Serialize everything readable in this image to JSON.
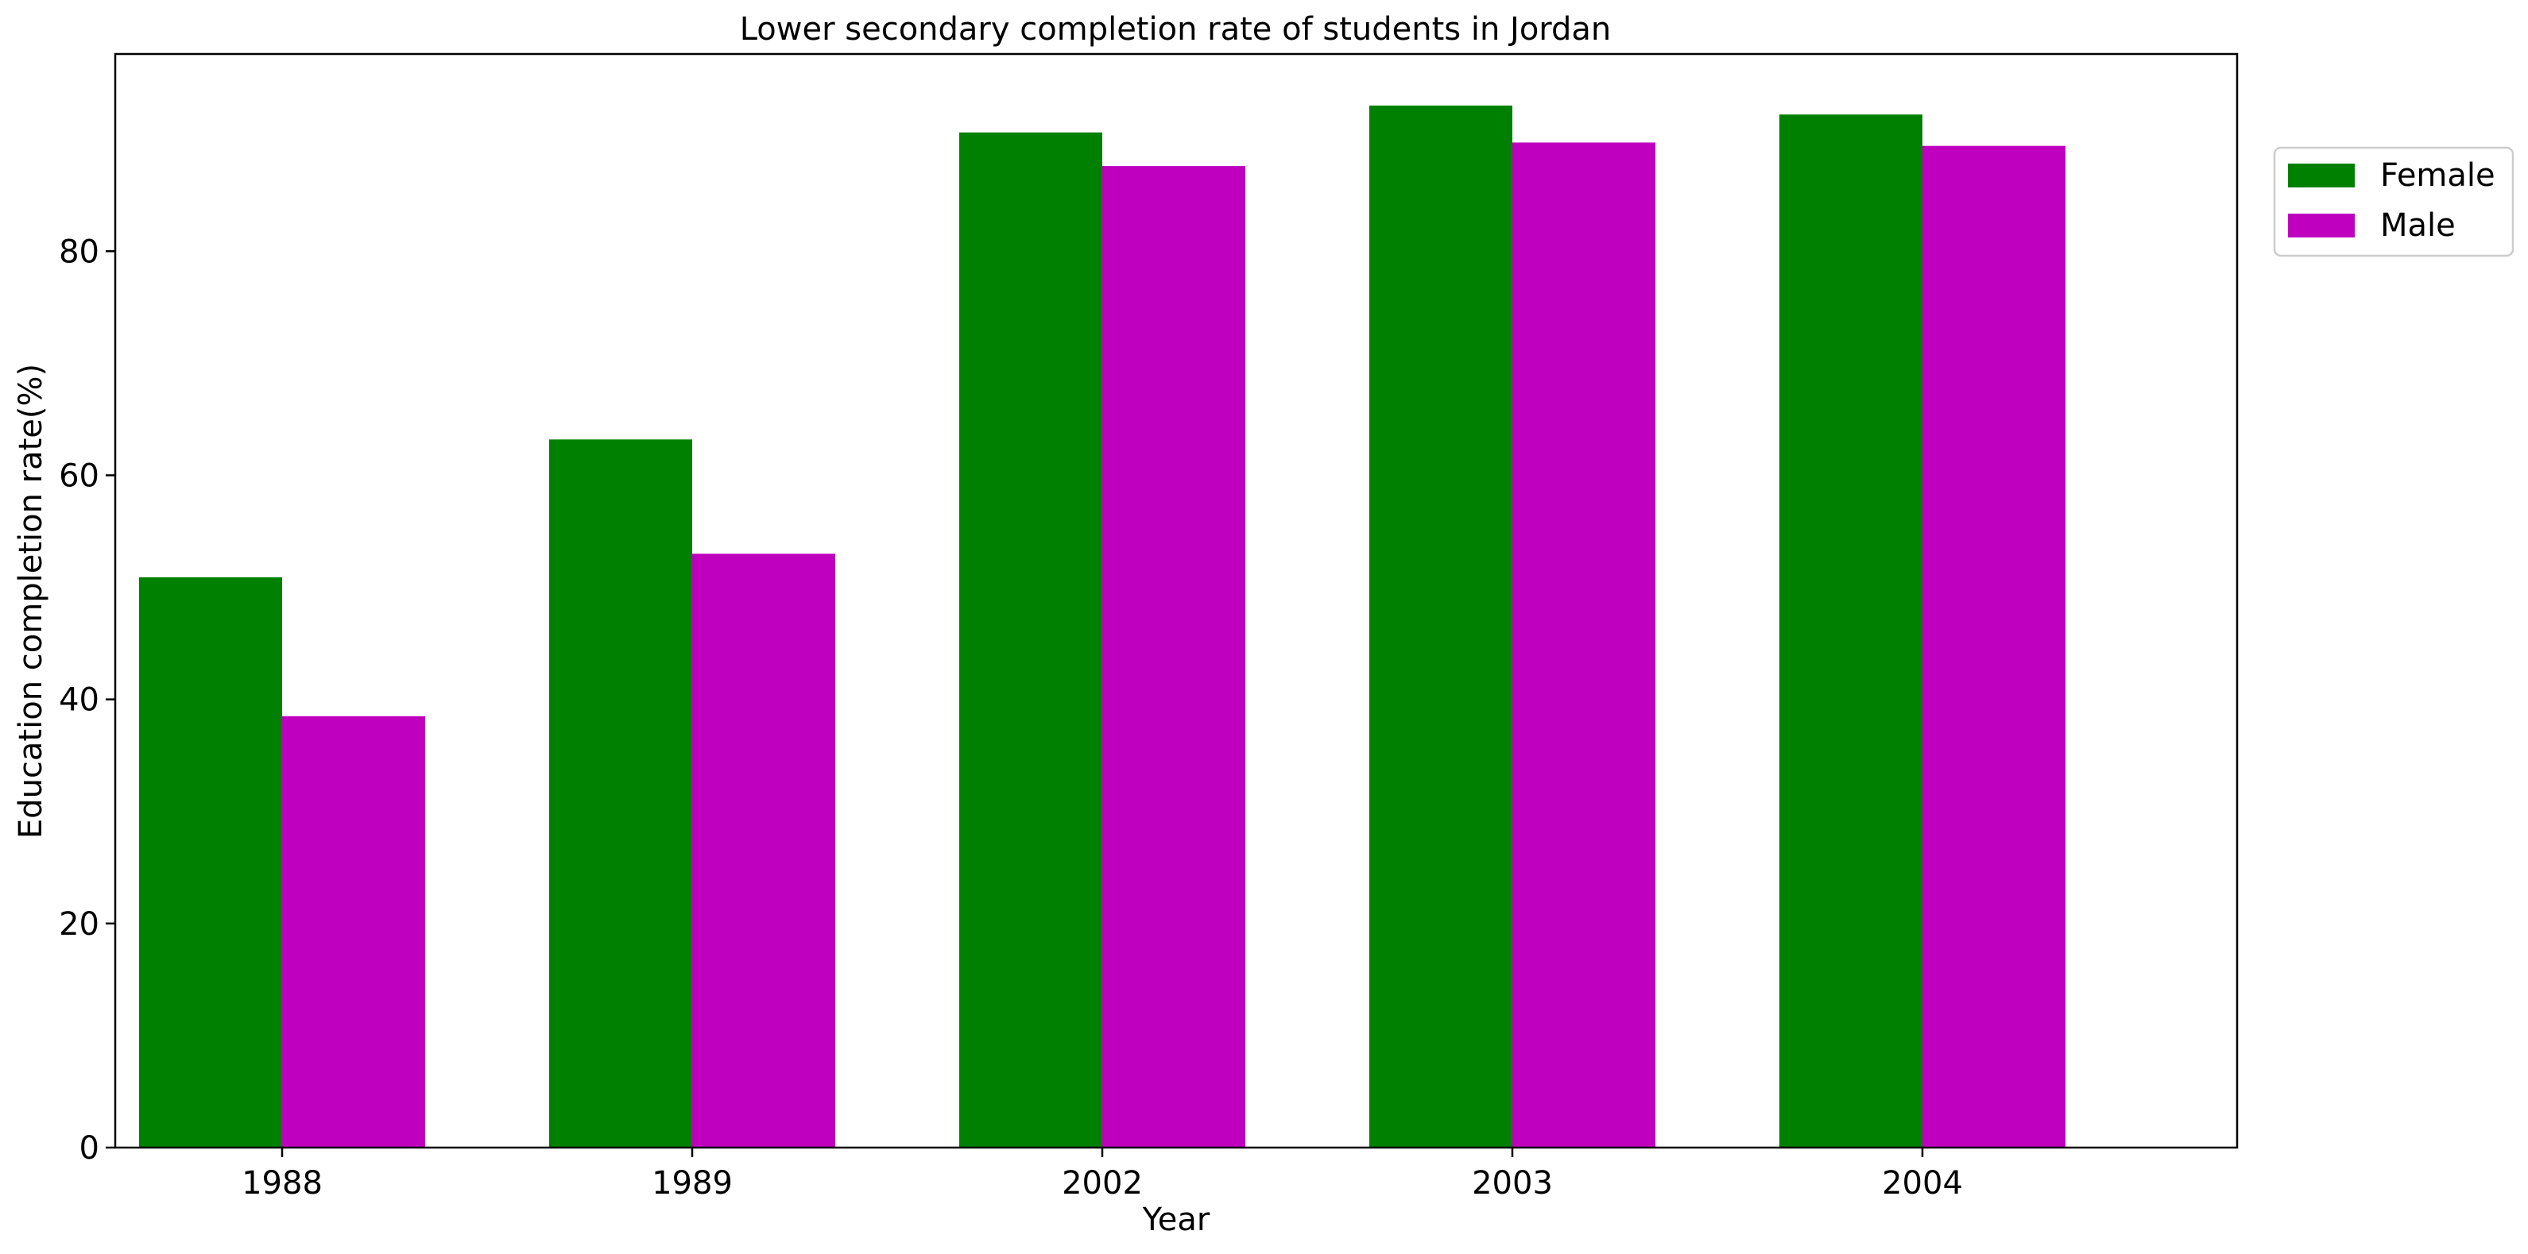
{
  "chart_data": {
    "type": "bar",
    "title": "Lower secondary completion rate of students in Jordan",
    "xlabel": "Year",
    "ylabel": "Education completion rate(%)",
    "categories": [
      "1988",
      "1989",
      "2002",
      "2003",
      "2004"
    ],
    "series": [
      {
        "name": "Female",
        "color": "#008000",
        "values": [
          50.9,
          63.2,
          90.6,
          93.0,
          92.2
        ]
      },
      {
        "name": "Male",
        "color": "#bf00bf",
        "values": [
          38.5,
          53.0,
          87.6,
          89.7,
          89.4
        ]
      }
    ],
    "ylim": [
      0,
      97.6
    ],
    "yticks": [
      0,
      20,
      40,
      60,
      80
    ],
    "grid": false,
    "legend": "upper right, outside plot"
  }
}
